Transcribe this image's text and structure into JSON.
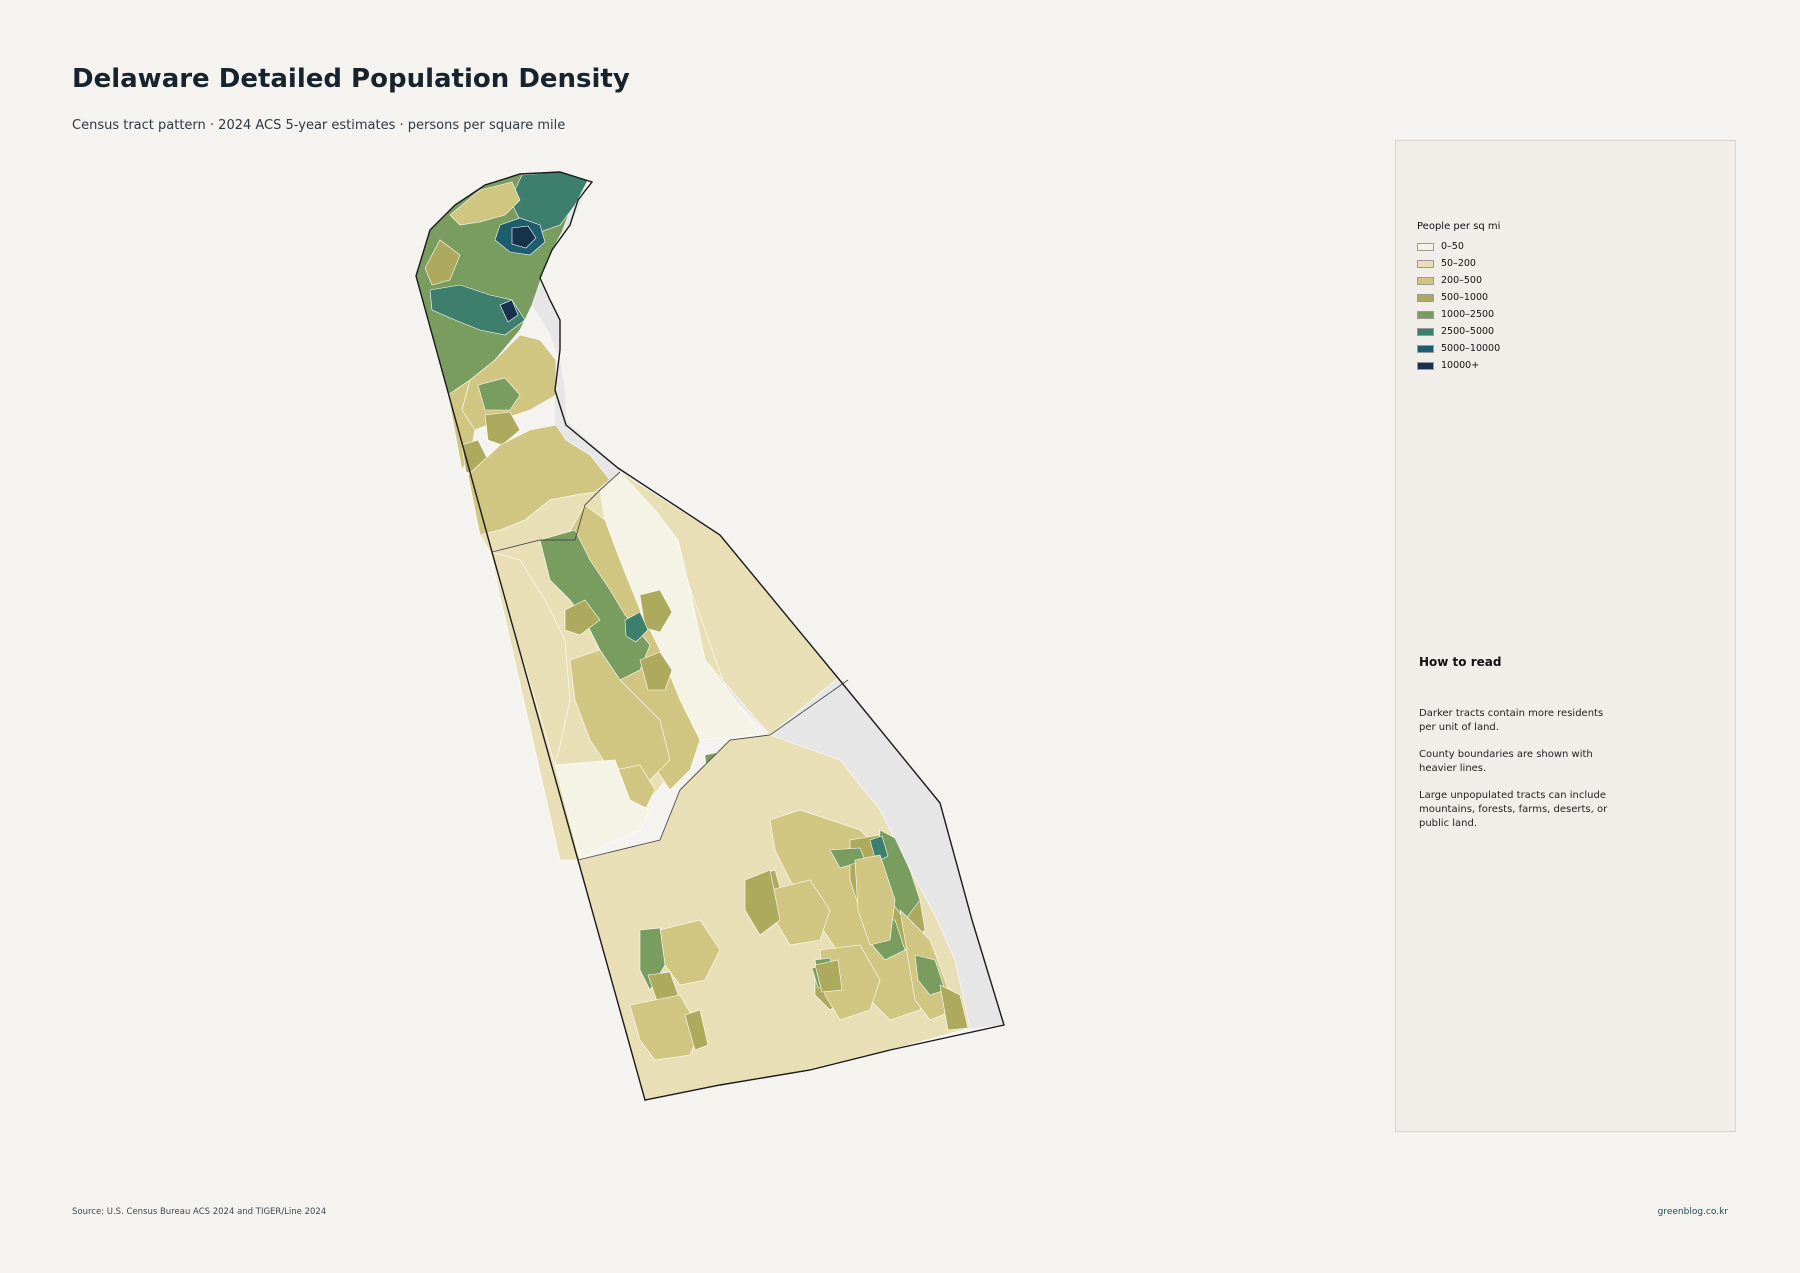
{
  "title": "Delaware Detailed Population Density",
  "subtitle": "Census tract pattern · 2024 ACS 5-year estimates · persons per square mile",
  "legend": {
    "title": "People per sq mi",
    "items": [
      {
        "label": "0–50",
        "color": "#f5f3e6"
      },
      {
        "label": "50–200",
        "color": "#e9dfb6"
      },
      {
        "label": "200–500",
        "color": "#d0c681"
      },
      {
        "label": "500–1000",
        "color": "#adaa5e"
      },
      {
        "label": "1000–2500",
        "color": "#789d5e"
      },
      {
        "label": "2500–5000",
        "color": "#3d7e6c"
      },
      {
        "label": "5000–10000",
        "color": "#1e5d6e"
      },
      {
        "label": "10000+",
        "color": "#16324d"
      }
    ]
  },
  "how_to_read": {
    "title": "How to read",
    "paragraphs": [
      "Darker tracts contain more residents per unit of land.",
      "County boundaries are shown with heavier lines.",
      "Large unpopulated tracts can include mountains, forests, farms, deserts, or public land."
    ]
  },
  "source": "Source: U.S. Census Bureau ACS 2024 and TIGER/Line 2024",
  "credit": "greenblog.co.kr",
  "colors": {
    "water": "#e6e6e6",
    "background": "#f5f3ef",
    "outline": "#1a1a1a"
  }
}
